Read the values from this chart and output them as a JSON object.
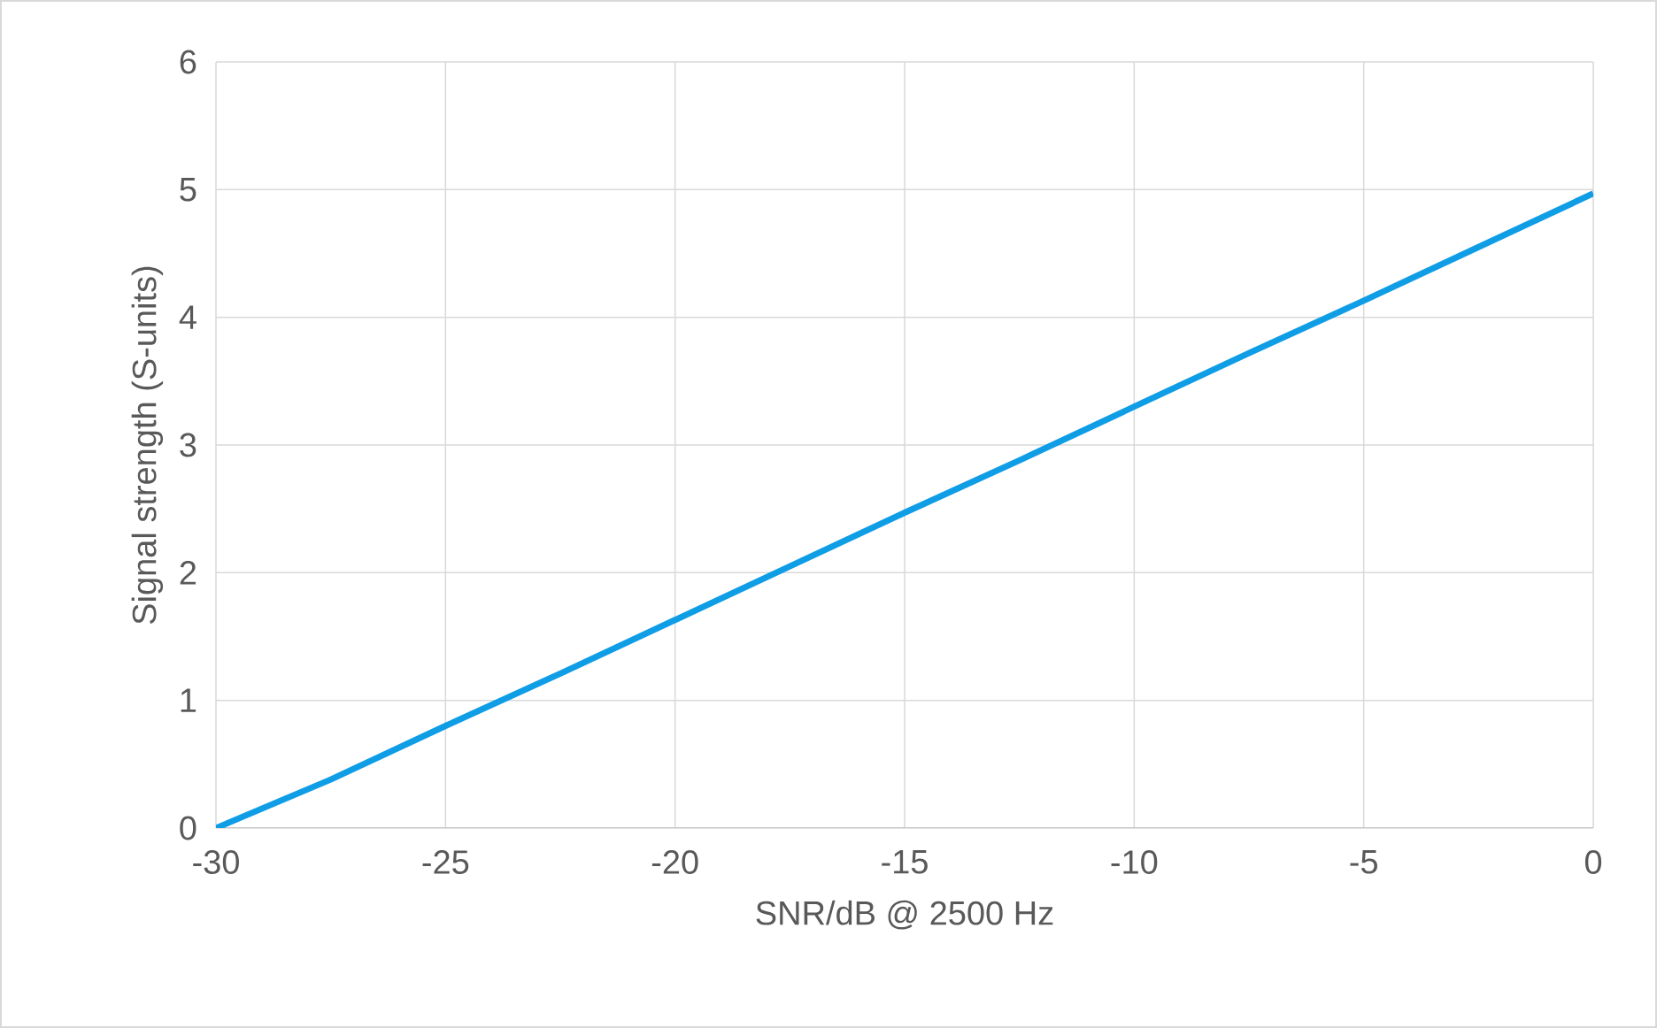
{
  "chart_data": {
    "type": "line",
    "xlabel": "SNR/dB @ 2500 Hz",
    "ylabel": "Signal strength (S-units)",
    "x": [
      -30,
      -27.5,
      -25,
      -22.5,
      -20,
      -17.5,
      -15,
      -12.5,
      -10,
      -7.5,
      -5,
      -2.5,
      0
    ],
    "series": [
      {
        "color": "#0f9de6",
        "values": [
          0,
          0.38,
          0.8,
          1.21,
          1.63,
          2.05,
          2.47,
          2.88,
          3.3,
          3.72,
          4.13,
          4.55,
          4.97
        ]
      }
    ],
    "xlim": [
      -30,
      0
    ],
    "ylim": [
      0,
      6
    ],
    "xticks": [
      -30,
      -25,
      -20,
      -15,
      -10,
      -5,
      0
    ],
    "yticks": [
      0,
      1,
      2,
      3,
      4,
      5,
      6
    ],
    "grid": true,
    "marker": "none",
    "line_style": "solid"
  }
}
